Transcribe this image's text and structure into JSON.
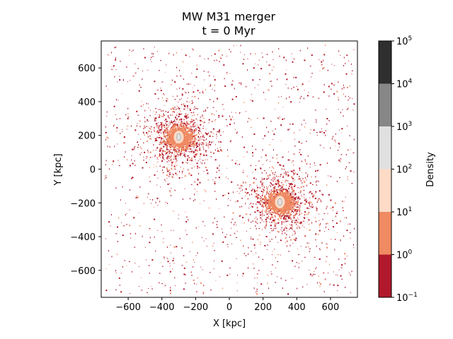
{
  "chart_data": {
    "type": "scatter",
    "title": "MW M31 merger",
    "subtitle": "t = 0 Myr",
    "xlabel": "X [kpc]",
    "ylabel": "Y [kpc]",
    "xlim": [
      -760,
      760
    ],
    "ylim": [
      -760,
      760
    ],
    "xticks": [
      -600,
      -400,
      -200,
      0,
      200,
      400,
      600
    ],
    "yticks": [
      -600,
      -400,
      -200,
      0,
      200,
      400,
      600
    ],
    "xtick_labels": [
      "−600",
      "−400",
      "−200",
      "0",
      "200",
      "400",
      "600"
    ],
    "ytick_labels": [
      "−600",
      "−400",
      "−200",
      "0",
      "200",
      "400",
      "600"
    ],
    "galaxies": [
      {
        "x": -300,
        "y": 190
      },
      {
        "x": 300,
        "y": -195
      }
    ],
    "colorbar": {
      "label": "Density",
      "scale": "log",
      "bounds_exponents": [
        -1,
        0,
        1,
        2,
        3,
        4,
        5
      ],
      "tick_labels": [
        "10",
        "10",
        "10",
        "10",
        "10",
        "10",
        "10"
      ],
      "tick_exponents": [
        "−1",
        "0",
        "1",
        "2",
        "3",
        "4",
        "5"
      ],
      "colors": [
        "#b2182b",
        "#ef8a62",
        "#fddbc7",
        "#e0e0e0",
        "#878787",
        "#2f2f2f"
      ]
    },
    "grid": false,
    "legend": "none"
  }
}
